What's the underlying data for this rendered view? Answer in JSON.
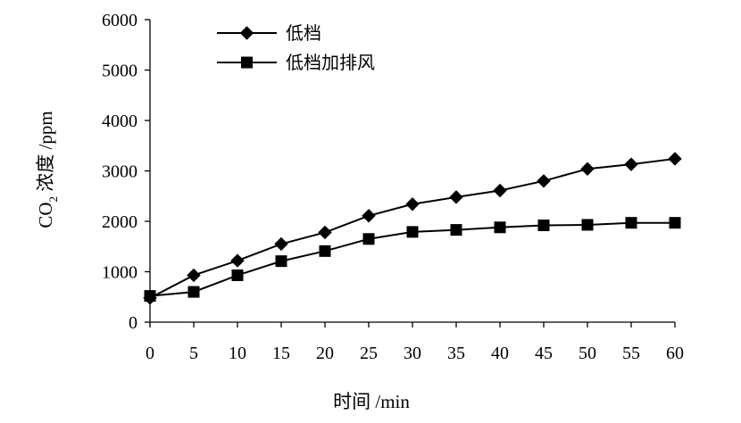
{
  "chart_data": {
    "type": "line",
    "title": "",
    "xlabel": "时间 /min",
    "ylabel": {
      "prefix": "CO",
      "subscript": "2",
      "suffix": " 浓度 /ppm"
    },
    "x": [
      0,
      5,
      10,
      15,
      20,
      25,
      30,
      35,
      40,
      45,
      50,
      55,
      60
    ],
    "xlim": [
      0,
      60
    ],
    "ylim": [
      0,
      6000
    ],
    "xticks": [
      "0",
      "5",
      "10",
      "15",
      "20",
      "25",
      "30",
      "35",
      "40",
      "45",
      "50",
      "55",
      "60"
    ],
    "yticks": [
      "0",
      "1000",
      "2000",
      "3000",
      "4000",
      "5000",
      "6000"
    ],
    "grid": false,
    "legend_position": "top-left",
    "series": [
      {
        "name": "低档",
        "marker": "diamond",
        "color": "#000000",
        "values": [
          480,
          930,
          1220,
          1550,
          1780,
          2110,
          2340,
          2480,
          2610,
          2800,
          3040,
          3130,
          3240
        ]
      },
      {
        "name": "低档加排风",
        "marker": "square",
        "color": "#000000",
        "values": [
          520,
          600,
          930,
          1210,
          1410,
          1650,
          1790,
          1830,
          1880,
          1920,
          1930,
          1970,
          1970
        ]
      }
    ]
  }
}
